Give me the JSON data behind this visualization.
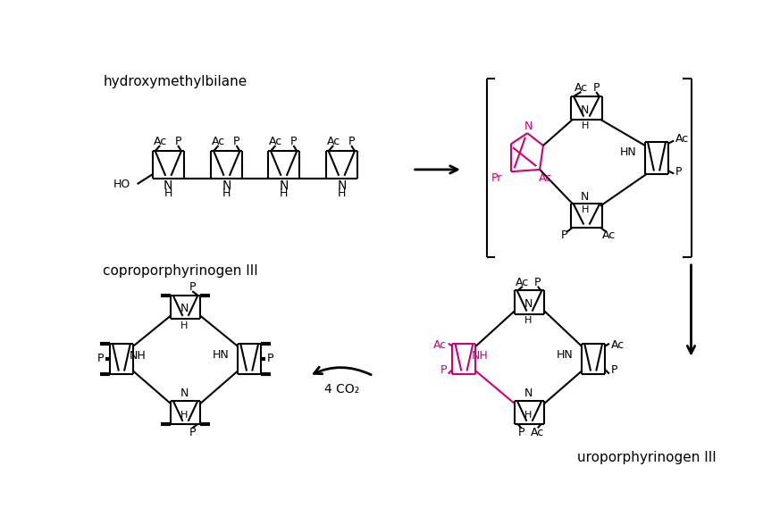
{
  "bg_color": "#ffffff",
  "black": "#000000",
  "magenta": "#cc0077",
  "label_hydroxymethylbilane": "hydroxymethylbilane",
  "label_coproporphyrinogen": "coproporphyrinogen III",
  "label_uroporphyrinogen": "uroporphyrinogen III",
  "label_4co2": "4 CO₂",
  "lw": 1.5,
  "lw_bold": 3.0
}
